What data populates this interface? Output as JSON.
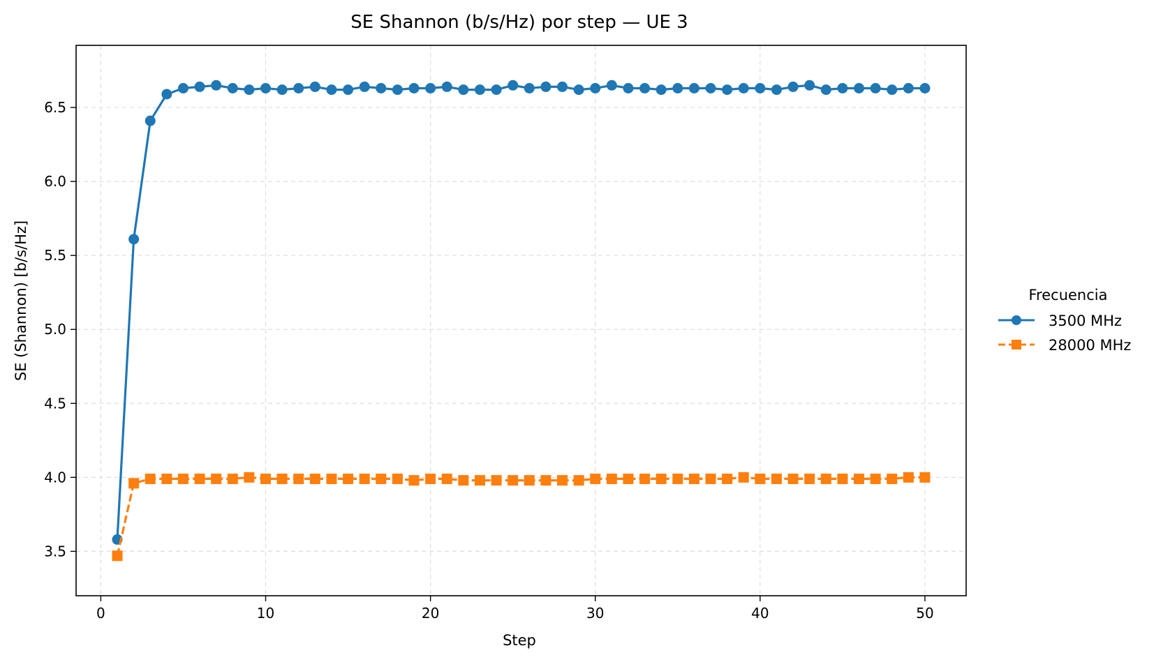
{
  "chart_data": {
    "type": "line",
    "title": "SE Shannon (b/s/Hz) por step — UE 3",
    "xlabel": "Step",
    "ylabel": "SE (Shannon) [b/s/Hz]",
    "xlim": [
      -1.5,
      52.5
    ],
    "ylim": [
      3.2,
      6.92
    ],
    "xticks": [
      0,
      10,
      20,
      30,
      40,
      50
    ],
    "yticks": [
      3.5,
      4.0,
      4.5,
      5.0,
      5.5,
      6.0,
      6.5
    ],
    "ytick_labels": [
      "3.5",
      "4.0",
      "4.5",
      "5.0",
      "5.5",
      "6.0",
      "6.5"
    ],
    "grid": true,
    "legend": {
      "title": "Frecuencia",
      "placement": "outside-right"
    },
    "x": [
      1,
      2,
      3,
      4,
      5,
      6,
      7,
      8,
      9,
      10,
      11,
      12,
      13,
      14,
      15,
      16,
      17,
      18,
      19,
      20,
      21,
      22,
      23,
      24,
      25,
      26,
      27,
      28,
      29,
      30,
      31,
      32,
      33,
      34,
      35,
      36,
      37,
      38,
      39,
      40,
      41,
      42,
      43,
      44,
      45,
      46,
      47,
      48,
      49,
      50
    ],
    "series": [
      {
        "name": "3500 MHz",
        "color": "#1f77b4",
        "marker": "circle",
        "linestyle": "solid",
        "values": [
          3.58,
          5.61,
          6.41,
          6.59,
          6.63,
          6.64,
          6.65,
          6.63,
          6.62,
          6.63,
          6.62,
          6.63,
          6.64,
          6.62,
          6.62,
          6.64,
          6.63,
          6.62,
          6.63,
          6.63,
          6.64,
          6.62,
          6.62,
          6.62,
          6.65,
          6.63,
          6.64,
          6.64,
          6.62,
          6.63,
          6.65,
          6.63,
          6.63,
          6.62,
          6.63,
          6.63,
          6.63,
          6.62,
          6.63,
          6.63,
          6.62,
          6.64,
          6.65,
          6.62,
          6.63,
          6.63,
          6.63,
          6.62,
          6.63,
          6.63
        ]
      },
      {
        "name": "28000 MHz",
        "color": "#ff7f0e",
        "marker": "square",
        "linestyle": "dashed",
        "values": [
          3.47,
          3.96,
          3.99,
          3.99,
          3.99,
          3.99,
          3.99,
          3.99,
          4.0,
          3.99,
          3.99,
          3.99,
          3.99,
          3.99,
          3.99,
          3.99,
          3.99,
          3.99,
          3.98,
          3.99,
          3.99,
          3.98,
          3.98,
          3.98,
          3.98,
          3.98,
          3.98,
          3.98,
          3.98,
          3.99,
          3.99,
          3.99,
          3.99,
          3.99,
          3.99,
          3.99,
          3.99,
          3.99,
          4.0,
          3.99,
          3.99,
          3.99,
          3.99,
          3.99,
          3.99,
          3.99,
          3.99,
          3.99,
          4.0,
          4.0
        ]
      }
    ]
  }
}
